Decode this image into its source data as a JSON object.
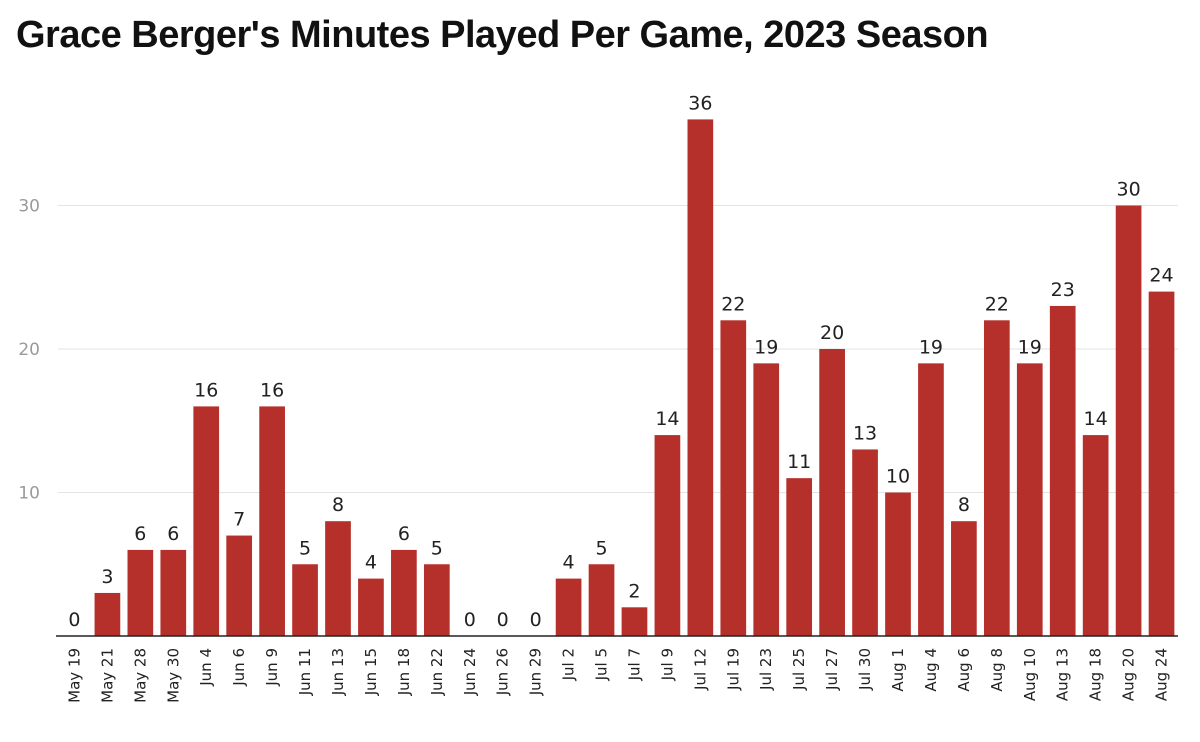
{
  "chart_data": {
    "type": "bar",
    "title": "Grace Berger's Minutes Played Per Game, 2023 Season",
    "xlabel": "",
    "ylabel": "",
    "categories": [
      "May 19",
      "May 21",
      "May 28",
      "May 30",
      "Jun 4",
      "Jun 6",
      "Jun 9",
      "Jun 11",
      "Jun 13",
      "Jun 15",
      "Jun 18",
      "Jun 22",
      "Jun 24",
      "Jun 26",
      "Jun 29",
      "Jul 2",
      "Jul 5",
      "Jul 7",
      "Jul 9",
      "Jul 12",
      "Jul 19",
      "Jul 23",
      "Jul 25",
      "Jul 27",
      "Jul 30",
      "Aug 1",
      "Aug 4",
      "Aug 6",
      "Aug 8",
      "Aug 10",
      "Aug 13",
      "Aug 18",
      "Aug 20",
      "Aug 24"
    ],
    "values": [
      0,
      3,
      6,
      6,
      16,
      7,
      16,
      5,
      8,
      4,
      6,
      5,
      0,
      0,
      0,
      4,
      5,
      2,
      14,
      36,
      22,
      19,
      11,
      20,
      13,
      10,
      19,
      8,
      22,
      19,
      23,
      14,
      30,
      24
    ],
    "ylim": [
      0,
      36
    ],
    "yticks": [
      10,
      20,
      30
    ],
    "grid": true,
    "bar_color": "#b5302a",
    "legend": "none"
  }
}
